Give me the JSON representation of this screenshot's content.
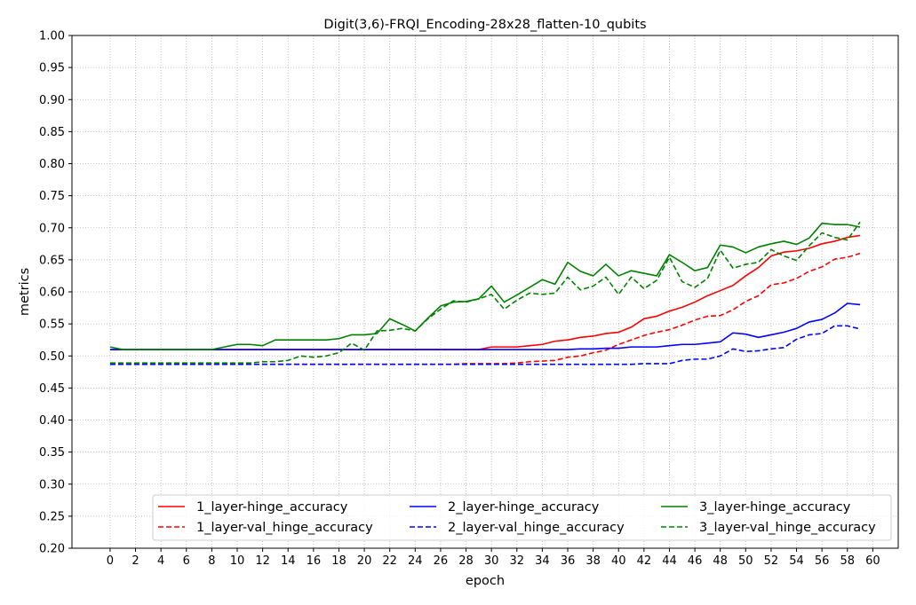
{
  "chart_data": {
    "type": "line",
    "title": "Digit(3,6)-FRQI_Encoding-28x28_flatten-10_qubits",
    "xlabel": "epoch",
    "ylabel": "metrics",
    "xlim": [
      -3,
      62
    ],
    "ylim": [
      0.2,
      1.0
    ],
    "xticks": [
      0,
      2,
      4,
      6,
      8,
      10,
      12,
      14,
      16,
      18,
      20,
      22,
      24,
      26,
      28,
      30,
      32,
      34,
      36,
      38,
      40,
      42,
      44,
      46,
      48,
      50,
      52,
      54,
      56,
      58,
      60
    ],
    "yticks": [
      0.2,
      0.25,
      0.3,
      0.35,
      0.4,
      0.45,
      0.5,
      0.55,
      0.6,
      0.65,
      0.7,
      0.75,
      0.8,
      0.85,
      0.9,
      0.95,
      1.0
    ],
    "ytick_labels": [
      "0.20",
      "0.25",
      "0.30",
      "0.35",
      "0.40",
      "0.45",
      "0.50",
      "0.55",
      "0.60",
      "0.65",
      "0.70",
      "0.75",
      "0.80",
      "0.85",
      "0.90",
      "0.95",
      "1.00"
    ],
    "grid": true,
    "legend_position": "lower-right",
    "series": [
      {
        "name": "1_layer-hinge_accuracy",
        "color": "#ff0000",
        "dash": "solid",
        "values": [
          0.51,
          0.51,
          0.51,
          0.51,
          0.51,
          0.51,
          0.51,
          0.51,
          0.51,
          0.51,
          0.51,
          0.51,
          0.51,
          0.51,
          0.51,
          0.51,
          0.51,
          0.51,
          0.51,
          0.51,
          0.51,
          0.51,
          0.51,
          0.51,
          0.51,
          0.51,
          0.51,
          0.51,
          0.51,
          0.51,
          0.514,
          0.514,
          0.514,
          0.516,
          0.518,
          0.523,
          0.525,
          0.529,
          0.531,
          0.535,
          0.537,
          0.545,
          0.558,
          0.562,
          0.57,
          0.576,
          0.584,
          0.594,
          0.602,
          0.61,
          0.625,
          0.638,
          0.656,
          0.662,
          0.664,
          0.668,
          0.675,
          0.679,
          0.685,
          0.688
        ]
      },
      {
        "name": "1_layer-val_hinge_accuracy",
        "color": "#ff0000",
        "dash": "dashed",
        "values": [
          0.487,
          0.487,
          0.487,
          0.487,
          0.487,
          0.487,
          0.487,
          0.487,
          0.487,
          0.487,
          0.487,
          0.487,
          0.487,
          0.487,
          0.487,
          0.487,
          0.487,
          0.487,
          0.487,
          0.487,
          0.487,
          0.487,
          0.487,
          0.487,
          0.487,
          0.487,
          0.487,
          0.487,
          0.488,
          0.488,
          0.488,
          0.488,
          0.489,
          0.491,
          0.492,
          0.493,
          0.498,
          0.5,
          0.505,
          0.509,
          0.518,
          0.525,
          0.532,
          0.537,
          0.541,
          0.548,
          0.556,
          0.562,
          0.563,
          0.572,
          0.585,
          0.594,
          0.611,
          0.614,
          0.621,
          0.632,
          0.639,
          0.651,
          0.654,
          0.66
        ]
      },
      {
        "name": "2_layer-hinge_accuracy",
        "color": "#0000ff",
        "dash": "solid",
        "values": [
          0.51,
          0.51,
          0.51,
          0.51,
          0.51,
          0.51,
          0.51,
          0.51,
          0.51,
          0.51,
          0.51,
          0.51,
          0.51,
          0.51,
          0.51,
          0.51,
          0.51,
          0.51,
          0.51,
          0.51,
          0.51,
          0.51,
          0.51,
          0.51,
          0.51,
          0.51,
          0.51,
          0.51,
          0.51,
          0.51,
          0.51,
          0.51,
          0.51,
          0.51,
          0.51,
          0.51,
          0.51,
          0.511,
          0.511,
          0.512,
          0.512,
          0.514,
          0.514,
          0.514,
          0.516,
          0.518,
          0.518,
          0.52,
          0.522,
          0.536,
          0.534,
          0.529,
          0.533,
          0.537,
          0.543,
          0.553,
          0.557,
          0.567,
          0.582,
          0.58
        ]
      },
      {
        "name": "2_layer-val_hinge_accuracy",
        "color": "#0000ff",
        "dash": "dashed",
        "values": [
          0.487,
          0.487,
          0.487,
          0.487,
          0.487,
          0.487,
          0.487,
          0.487,
          0.487,
          0.487,
          0.487,
          0.487,
          0.487,
          0.487,
          0.487,
          0.487,
          0.487,
          0.487,
          0.487,
          0.487,
          0.487,
          0.487,
          0.487,
          0.487,
          0.487,
          0.487,
          0.487,
          0.487,
          0.487,
          0.487,
          0.487,
          0.487,
          0.487,
          0.487,
          0.487,
          0.487,
          0.487,
          0.487,
          0.487,
          0.487,
          0.487,
          0.487,
          0.488,
          0.488,
          0.488,
          0.493,
          0.495,
          0.495,
          0.5,
          0.511,
          0.507,
          0.508,
          0.511,
          0.513,
          0.526,
          0.533,
          0.535,
          0.547,
          0.547,
          0.542
        ]
      },
      {
        "name": "3_layer-hinge_accuracy",
        "color": "#008000",
        "dash": "solid",
        "values": [
          0.514,
          0.51,
          0.51,
          0.51,
          0.51,
          0.51,
          0.51,
          0.51,
          0.51,
          0.514,
          0.518,
          0.518,
          0.516,
          0.525,
          0.525,
          0.525,
          0.525,
          0.525,
          0.527,
          0.533,
          0.533,
          0.535,
          0.558,
          0.549,
          0.539,
          0.559,
          0.578,
          0.584,
          0.585,
          0.589,
          0.609,
          0.584,
          0.595,
          0.607,
          0.619,
          0.612,
          0.646,
          0.632,
          0.625,
          0.643,
          0.625,
          0.633,
          0.629,
          0.625,
          0.658,
          0.646,
          0.633,
          0.638,
          0.673,
          0.67,
          0.661,
          0.67,
          0.675,
          0.679,
          0.674,
          0.684,
          0.707,
          0.705,
          0.705,
          0.701
        ]
      },
      {
        "name": "3_layer-val_hinge_accuracy",
        "color": "#008000",
        "dash": "dashed",
        "values": [
          0.489,
          0.489,
          0.489,
          0.489,
          0.489,
          0.489,
          0.489,
          0.489,
          0.489,
          0.489,
          0.489,
          0.489,
          0.491,
          0.491,
          0.493,
          0.5,
          0.498,
          0.5,
          0.505,
          0.52,
          0.509,
          0.539,
          0.54,
          0.543,
          0.539,
          0.558,
          0.573,
          0.586,
          0.584,
          0.589,
          0.596,
          0.573,
          0.587,
          0.598,
          0.596,
          0.598,
          0.623,
          0.603,
          0.609,
          0.623,
          0.596,
          0.623,
          0.605,
          0.618,
          0.654,
          0.616,
          0.607,
          0.621,
          0.665,
          0.637,
          0.643,
          0.646,
          0.666,
          0.656,
          0.649,
          0.672,
          0.692,
          0.685,
          0.681,
          0.709
        ]
      }
    ]
  }
}
